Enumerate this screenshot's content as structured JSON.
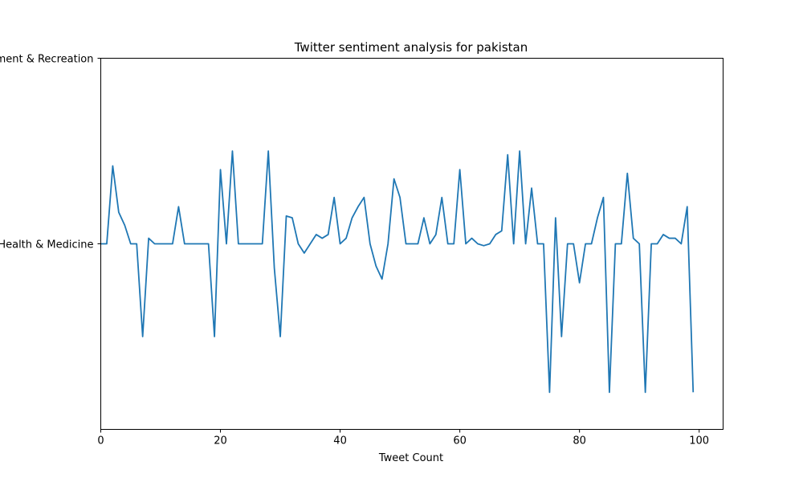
{
  "chart_data": {
    "type": "line",
    "title": "Twitter sentiment analysis for pakistan",
    "xlabel": "Tweet Count",
    "ylabel": "",
    "xlim": [
      0,
      104
    ],
    "ylim": [
      -1.0,
      1.0
    ],
    "x_ticks": [
      0,
      20,
      40,
      60,
      80,
      100
    ],
    "y_ticks": [
      {
        "value": 0.0,
        "label": "Health & Medicine"
      },
      {
        "value": 1.0,
        "label": "Entertainment & Recreation"
      }
    ],
    "grid": false,
    "legend": "none",
    "color": "#1f77b4",
    "series": [
      {
        "x": [
          0,
          1,
          2,
          3,
          4,
          5,
          6,
          7,
          8,
          9,
          10,
          11,
          12,
          13,
          14,
          15,
          16,
          17,
          18,
          19,
          20,
          21,
          22,
          23,
          24,
          25,
          26,
          27,
          28,
          29,
          30,
          31,
          32,
          33,
          34,
          35,
          36,
          37,
          38,
          39,
          40,
          41,
          42,
          43,
          44,
          45,
          46,
          47,
          48,
          49,
          50,
          51,
          52,
          53,
          54,
          55,
          56,
          57,
          58,
          59,
          60,
          61,
          62,
          63,
          64,
          65,
          66,
          67,
          68,
          69,
          70,
          71,
          72,
          73,
          74,
          75,
          76,
          77,
          78,
          79,
          80,
          81,
          82,
          83,
          84,
          85,
          86,
          87,
          88,
          89,
          90,
          91,
          92,
          93,
          94,
          95,
          96,
          97,
          98,
          99
        ],
        "y": [
          0.0,
          0.0,
          0.42,
          0.17,
          0.1,
          0.0,
          0.0,
          -0.5,
          0.03,
          0.0,
          0.0,
          0.0,
          0.0,
          0.2,
          0.0,
          0.0,
          0.0,
          0.0,
          0.0,
          -0.5,
          0.4,
          0.0,
          0.5,
          0.0,
          0.0,
          0.0,
          0.0,
          0.0,
          0.5,
          -0.13,
          -0.5,
          0.15,
          0.14,
          0.0,
          -0.05,
          0.0,
          0.05,
          0.03,
          0.05,
          0.25,
          0.0,
          0.03,
          0.14,
          0.2,
          0.25,
          0.0,
          -0.12,
          -0.19,
          0.0,
          0.35,
          0.25,
          0.0,
          0.0,
          0.0,
          0.14,
          0.0,
          0.05,
          0.25,
          0.0,
          0.0,
          0.4,
          0.0,
          0.03,
          0.0,
          -0.01,
          0.0,
          0.05,
          0.07,
          0.48,
          0.0,
          0.5,
          0.0,
          0.3,
          0.0,
          0.0,
          -0.8,
          0.14,
          -0.5,
          0.0,
          0.0,
          -0.21,
          0.0,
          0.0,
          0.14,
          0.25,
          -0.8,
          0.0,
          0.0,
          0.38,
          0.03,
          0.0,
          -0.8,
          0.0,
          0.0,
          0.05,
          0.03,
          0.03,
          0.0,
          0.2,
          -0.8
        ]
      }
    ]
  }
}
